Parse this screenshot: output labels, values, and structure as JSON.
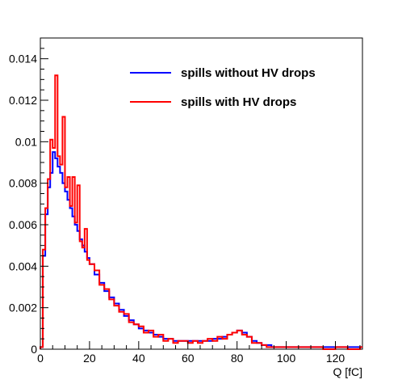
{
  "chart_data": {
    "type": "line",
    "step": true,
    "title": "",
    "xlabel": "Q [fC]",
    "ylabel": "",
    "xlim": [
      0,
      131
    ],
    "ylim": [
      0,
      0.015
    ],
    "x_ticks": [
      0,
      20,
      40,
      60,
      80,
      100,
      120
    ],
    "x_tick_labels": [
      "0",
      "20",
      "40",
      "60",
      "80",
      "100",
      "120"
    ],
    "y_ticks": [
      0,
      0.002,
      0.004,
      0.006,
      0.008,
      0.01,
      0.012,
      0.014
    ],
    "y_tick_labels": [
      "0",
      "0.002",
      "0.004",
      "0.006",
      "0.008",
      "0.01",
      "0.012",
      "0.014"
    ],
    "grid": false,
    "legend_position": "top-right",
    "series": [
      {
        "name": "spills without HV drops",
        "color": "#0000ff",
        "x": [
          0,
          1,
          2,
          3,
          4,
          5,
          6,
          7,
          8,
          9,
          10,
          11,
          12,
          13,
          14,
          15,
          16,
          17,
          18,
          19,
          20,
          22,
          24,
          26,
          28,
          30,
          32,
          34,
          36,
          38,
          40,
          42,
          44,
          46,
          48,
          50,
          52,
          54,
          56,
          58,
          60,
          62,
          64,
          66,
          68,
          70,
          72,
          74,
          76,
          78,
          80,
          82,
          84,
          86,
          88,
          90,
          92,
          94,
          96,
          98,
          100,
          105,
          110,
          115,
          120,
          125,
          130
        ],
        "values": [
          0.0001,
          0.0045,
          0.0065,
          0.0078,
          0.0085,
          0.0095,
          0.0092,
          0.0088,
          0.0085,
          0.008,
          0.0076,
          0.0072,
          0.0068,
          0.0064,
          0.006,
          0.0057,
          0.0053,
          0.005,
          0.0047,
          0.0044,
          0.0041,
          0.0036,
          0.0032,
          0.0028,
          0.0025,
          0.0022,
          0.0019,
          0.0016,
          0.0014,
          0.0012,
          0.001,
          0.0009,
          0.0008,
          0.0007,
          0.0006,
          0.0005,
          0.0005,
          0.0004,
          0.0004,
          0.0004,
          0.0004,
          0.0004,
          0.0004,
          0.0004,
          0.0004,
          0.0005,
          0.0005,
          0.0006,
          0.0007,
          0.0008,
          0.0009,
          0.0008,
          0.0006,
          0.0004,
          0.0003,
          0.0002,
          0.0002,
          0.0001,
          0.0001,
          0.0001,
          0.0001,
          0.0001,
          0.0001,
          0.0001,
          0.0001,
          0.0001,
          0.0001
        ]
      },
      {
        "name": "spills with HV drops",
        "color": "#ff0000",
        "x": [
          0,
          1,
          2,
          3,
          4,
          5,
          6,
          7,
          8,
          9,
          10,
          11,
          12,
          13,
          14,
          15,
          16,
          17,
          18,
          19,
          20,
          22,
          24,
          26,
          28,
          30,
          32,
          34,
          36,
          38,
          40,
          42,
          44,
          46,
          48,
          50,
          52,
          54,
          56,
          58,
          60,
          62,
          64,
          66,
          68,
          70,
          72,
          74,
          76,
          78,
          80,
          82,
          84,
          86,
          88,
          90,
          92,
          94,
          96,
          98,
          100,
          105,
          110,
          115,
          120,
          125,
          130
        ],
        "values": [
          0.0001,
          0.0048,
          0.0068,
          0.0082,
          0.0101,
          0.0097,
          0.0132,
          0.0093,
          0.0089,
          0.0112,
          0.0078,
          0.0083,
          0.0069,
          0.0083,
          0.0061,
          0.0079,
          0.0052,
          0.0049,
          0.0058,
          0.0043,
          0.0041,
          0.0038,
          0.0031,
          0.0029,
          0.0024,
          0.0021,
          0.0018,
          0.0017,
          0.0013,
          0.0012,
          0.0011,
          0.0008,
          0.0009,
          0.0006,
          0.0007,
          0.0004,
          0.0005,
          0.0003,
          0.0004,
          0.0004,
          0.0003,
          0.0004,
          0.0003,
          0.0004,
          0.0005,
          0.0004,
          0.0006,
          0.0005,
          0.0007,
          0.0008,
          0.0009,
          0.0007,
          0.0006,
          0.0003,
          0.0003,
          0.0002,
          0.0001,
          0.0001,
          0.0001,
          0.0001,
          0.0001,
          0.0001,
          0.0001,
          0.0,
          0.0001,
          0.0,
          0.0001
        ]
      }
    ]
  }
}
